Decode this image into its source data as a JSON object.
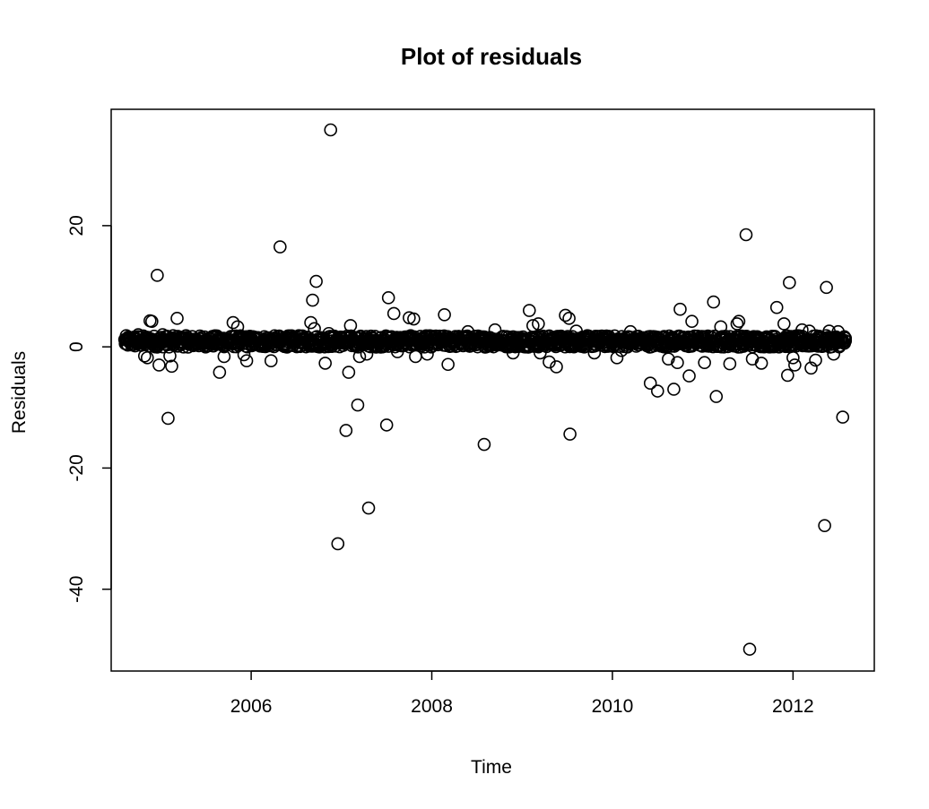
{
  "chart_data": {
    "type": "scatter",
    "title": "Plot of residuals",
    "xlabel": "Time",
    "ylabel": "Residuals",
    "xlim": [
      2004.45,
      2012.9
    ],
    "ylim": [
      -53.5,
      39.2
    ],
    "x_ticks": [
      2006,
      2008,
      2010,
      2012
    ],
    "x_tick_labels": [
      "2006",
      "2008",
      "2010",
      "2012"
    ],
    "y_ticks": [
      20,
      0,
      -20,
      -40
    ],
    "y_tick_labels": [
      "20",
      "0",
      "-20",
      "-40"
    ],
    "grid": false,
    "legend": "none",
    "marker": "open-circle",
    "series": [
      {
        "points": [
          [
            2004.62,
            0.5
          ],
          [
            2004.65,
            1.0
          ],
          [
            2004.68,
            1.2
          ],
          [
            2004.72,
            0.8
          ],
          [
            2004.75,
            2.0
          ],
          [
            2004.78,
            1.1
          ],
          [
            2004.82,
            -1.5
          ],
          [
            2004.85,
            -1.8
          ],
          [
            2004.88,
            4.3
          ],
          [
            2004.9,
            4.2
          ],
          [
            2004.92,
            1.0
          ],
          [
            2004.96,
            11.8
          ],
          [
            2004.98,
            -3.0
          ],
          [
            2005.02,
            2.0
          ],
          [
            2005.05,
            1.0
          ],
          [
            2005.08,
            -11.8
          ],
          [
            2005.1,
            -1.5
          ],
          [
            2005.12,
            -3.2
          ],
          [
            2005.18,
            4.7
          ],
          [
            2005.22,
            1.3
          ],
          [
            2005.3,
            0.8
          ],
          [
            2005.4,
            1.0
          ],
          [
            2005.5,
            1.2
          ],
          [
            2005.62,
            1.6
          ],
          [
            2005.65,
            -4.2
          ],
          [
            2005.7,
            -1.6
          ],
          [
            2005.8,
            4.0
          ],
          [
            2005.85,
            3.3
          ],
          [
            2005.92,
            -1.3
          ],
          [
            2005.95,
            -2.3
          ],
          [
            2006.02,
            1.0
          ],
          [
            2006.15,
            0.5
          ],
          [
            2006.2,
            0.8
          ],
          [
            2006.22,
            -2.3
          ],
          [
            2006.32,
            16.5
          ],
          [
            2006.35,
            0.2
          ],
          [
            2006.5,
            1.0
          ],
          [
            2006.6,
            1.2
          ],
          [
            2006.66,
            4.0
          ],
          [
            2006.68,
            7.7
          ],
          [
            2006.7,
            3.0
          ],
          [
            2006.72,
            10.8
          ],
          [
            2006.82,
            -2.7
          ],
          [
            2006.86,
            2.2
          ],
          [
            2006.88,
            35.8
          ],
          [
            2006.9,
            1.0
          ],
          [
            2006.96,
            -32.5
          ],
          [
            2007.05,
            -13.8
          ],
          [
            2007.08,
            -4.2
          ],
          [
            2007.1,
            3.5
          ],
          [
            2007.18,
            -9.6
          ],
          [
            2007.2,
            -1.6
          ],
          [
            2007.28,
            -1.2
          ],
          [
            2007.3,
            -26.6
          ],
          [
            2007.4,
            1.0
          ],
          [
            2007.5,
            -12.9
          ],
          [
            2007.52,
            8.1
          ],
          [
            2007.58,
            5.5
          ],
          [
            2007.62,
            -0.8
          ],
          [
            2007.75,
            4.8
          ],
          [
            2007.8,
            4.6
          ],
          [
            2007.82,
            -1.6
          ],
          [
            2007.95,
            -1.2
          ],
          [
            2008.0,
            0.5
          ],
          [
            2008.1,
            0.8
          ],
          [
            2008.14,
            5.3
          ],
          [
            2008.18,
            -2.9
          ],
          [
            2008.4,
            2.5
          ],
          [
            2008.58,
            -16.1
          ],
          [
            2008.7,
            2.8
          ],
          [
            2008.9,
            -1.0
          ],
          [
            2009.08,
            6.0
          ],
          [
            2009.12,
            3.5
          ],
          [
            2009.18,
            3.8
          ],
          [
            2009.2,
            -1.0
          ],
          [
            2009.3,
            -2.5
          ],
          [
            2009.38,
            -3.3
          ],
          [
            2009.45,
            1.5
          ],
          [
            2009.48,
            5.2
          ],
          [
            2009.52,
            4.7
          ],
          [
            2009.53,
            -14.4
          ],
          [
            2009.6,
            2.6
          ],
          [
            2009.8,
            -1.0
          ],
          [
            2010.05,
            -1.8
          ],
          [
            2010.1,
            -0.6
          ],
          [
            2010.2,
            2.5
          ],
          [
            2010.35,
            1.0
          ],
          [
            2010.42,
            -6.0
          ],
          [
            2010.5,
            -7.3
          ],
          [
            2010.55,
            1.5
          ],
          [
            2010.62,
            -2.0
          ],
          [
            2010.68,
            -7.0
          ],
          [
            2010.72,
            -2.6
          ],
          [
            2010.75,
            6.2
          ],
          [
            2010.85,
            -4.8
          ],
          [
            2010.88,
            4.2
          ],
          [
            2011.0,
            1.5
          ],
          [
            2011.02,
            -2.6
          ],
          [
            2011.12,
            7.4
          ],
          [
            2011.15,
            -8.2
          ],
          [
            2011.2,
            3.3
          ],
          [
            2011.3,
            -2.8
          ],
          [
            2011.38,
            3.8
          ],
          [
            2011.4,
            4.2
          ],
          [
            2011.48,
            18.5
          ],
          [
            2011.52,
            -49.9
          ],
          [
            2011.55,
            -2.0
          ],
          [
            2011.65,
            -2.7
          ],
          [
            2011.72,
            1.5
          ],
          [
            2011.82,
            6.5
          ],
          [
            2011.9,
            3.8
          ],
          [
            2011.94,
            -4.7
          ],
          [
            2011.96,
            10.6
          ],
          [
            2012.0,
            -1.8
          ],
          [
            2012.02,
            -3.0
          ],
          [
            2012.1,
            2.8
          ],
          [
            2012.18,
            2.6
          ],
          [
            2012.2,
            -3.5
          ],
          [
            2012.25,
            -2.2
          ],
          [
            2012.32,
            1.5
          ],
          [
            2012.35,
            -29.5
          ],
          [
            2012.37,
            9.8
          ],
          [
            2012.4,
            2.6
          ],
          [
            2012.45,
            -1.2
          ],
          [
            2012.5,
            2.5
          ],
          [
            2012.55,
            -11.6
          ],
          [
            2012.57,
            0.6
          ],
          [
            2012.58,
            1.0
          ]
        ]
      }
    ]
  }
}
